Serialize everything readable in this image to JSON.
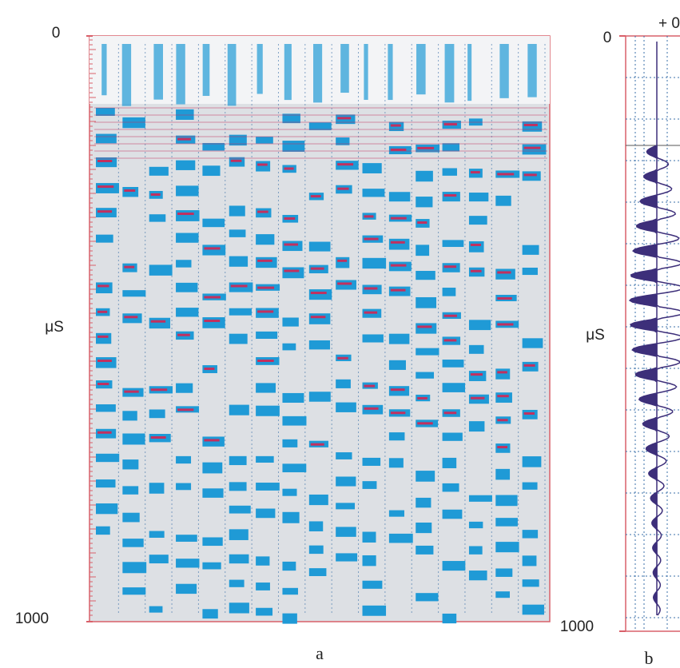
{
  "chart_data": [
    {
      "type": "density",
      "label": "a",
      "ylabel": "μS",
      "ylim": [
        0,
        1000
      ],
      "yticks": [
        0,
        1000
      ]
    },
    {
      "type": "waveform",
      "label": "b",
      "ylabel": "μS",
      "header": "+ 0 -",
      "ylim": [
        0,
        1000
      ],
      "yticks": [
        0,
        1000
      ]
    }
  ]
}
